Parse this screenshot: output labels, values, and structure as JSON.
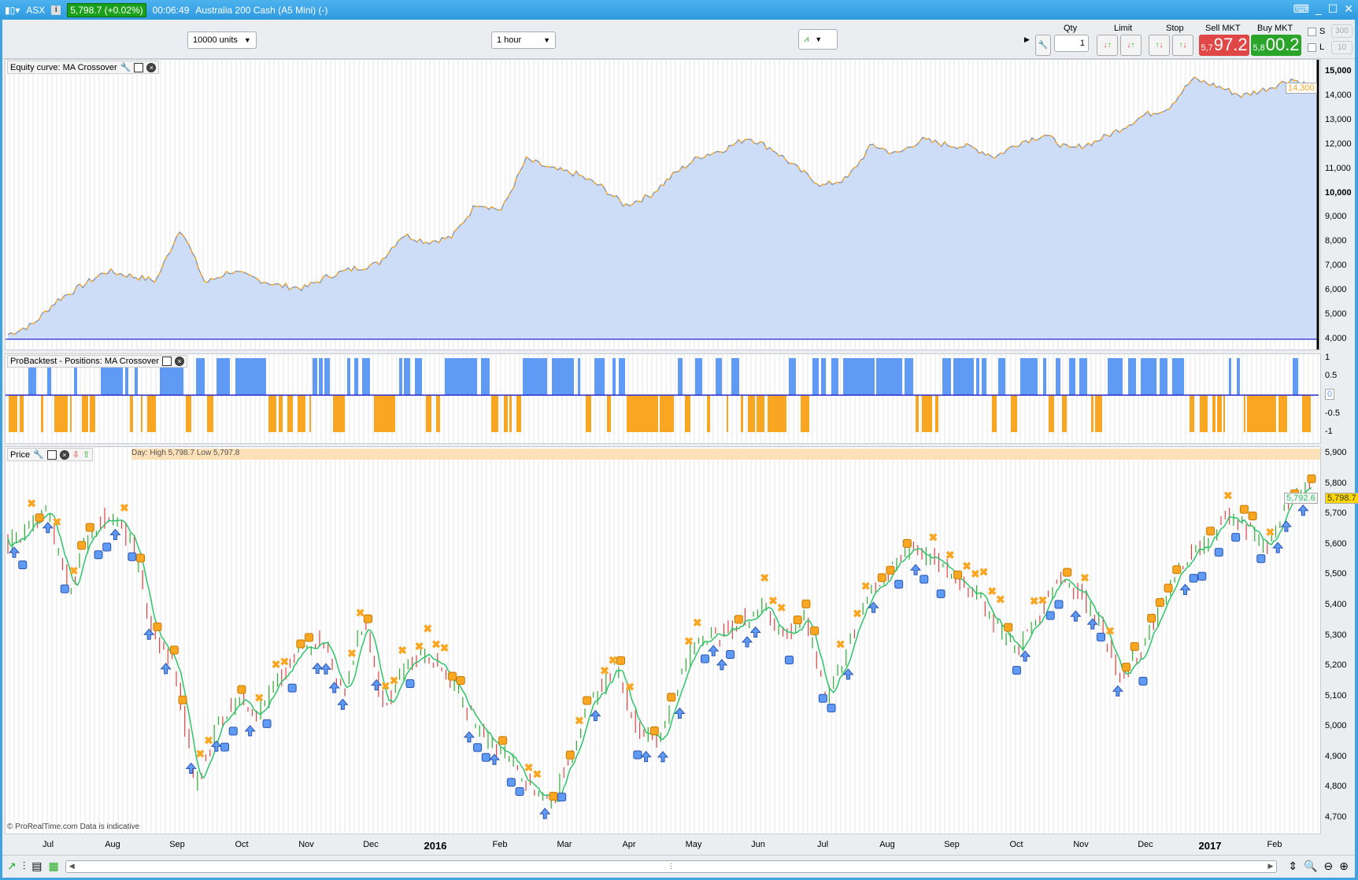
{
  "title_bar": {
    "symbol": "ASX",
    "last_price": "5,798.7 (+0.02%)",
    "time": "00:06:49",
    "instrument": "Australia 200 Cash (A5 Mini) (-)"
  },
  "toolbar": {
    "units": "10000 units",
    "timeframe": "1 hour",
    "qty_label": "Qty",
    "qty_value": "1",
    "limit_label": "Limit",
    "stop_label": "Stop",
    "sell_label": "Sell MKT",
    "sell_big": "97.2",
    "sell_small": "5,7",
    "buy_label": "Buy MKT",
    "buy_big": "00.2",
    "buy_small": "5,8",
    "s_label": "S",
    "s_value": "300",
    "l_label": "L",
    "l_value": "10"
  },
  "colors": {
    "equity_fill": "#cddcf7",
    "equity_line": "#6495ed",
    "equity_line2": "#f5a623",
    "long": "#5f9af5",
    "short": "#f9a623",
    "buy_green": "#2aa52a",
    "sell_red": "#e04848"
  },
  "panels": {
    "equity_title": "Equity curve: MA Crossover",
    "positions_title": "ProBacktest - Positions: MA Crossover",
    "price_title": "Price",
    "price_info": "Day: High 5,798.7  Low 5,797.8",
    "footer_note": "© ProRealTime.com Data is indicative"
  },
  "axes": {
    "equity_ticks": [
      "15,000",
      "14,000",
      "13,000",
      "12,000",
      "11,000",
      "10,000",
      "9,000",
      "8,000",
      "7,000",
      "6,000",
      "5,000",
      "4,000"
    ],
    "equity_current": "14,300",
    "positions_ticks": [
      "1",
      "0.5",
      "0",
      "-0.5",
      "-1"
    ],
    "price_ticks": [
      "5,900",
      "5,800",
      "5,700",
      "5,600",
      "5,500",
      "5,400",
      "5,300",
      "5,200",
      "5,100",
      "5,000",
      "4,900",
      "4,800",
      "4,700"
    ],
    "price_current": "5,798.7",
    "price_ma": "5,792.6",
    "months": [
      "Jul",
      "Aug",
      "Sep",
      "Oct",
      "Nov",
      "Dec",
      "2016",
      "Feb",
      "Mar",
      "Apr",
      "May",
      "Jun",
      "Jul",
      "Aug",
      "Sep",
      "Oct",
      "Nov",
      "Dec",
      "2017",
      "Feb"
    ]
  },
  "chart_data": [
    {
      "type": "area",
      "title": "Equity curve: MA Crossover",
      "ylim": [
        4000,
        15000
      ],
      "values": [
        4200,
        4600,
        5600,
        6200,
        6800,
        6600,
        6400,
        8600,
        6300,
        6800,
        6500,
        6200,
        6100,
        6600,
        6900,
        7100,
        8300,
        8000,
        8200,
        9600,
        9300,
        11400,
        11000,
        10800,
        10300,
        9500,
        9900,
        10800,
        11500,
        11800,
        12300,
        11800,
        11000,
        10300,
        10600,
        12000,
        11600,
        12200,
        12000,
        11900,
        11500,
        12100,
        12400,
        11800,
        12100,
        12600,
        13200,
        13500,
        14700,
        14400,
        14000,
        14300,
        14700,
        14300
      ]
    },
    {
      "type": "bar",
      "title": "ProBacktest - Positions: MA Crossover",
      "ylim": [
        -1,
        1
      ],
      "values": "+1 long / -1 short position per bar"
    },
    {
      "type": "line",
      "title": "Price",
      "ylim": [
        4700,
        5900
      ],
      "values": [
        5600,
        5650,
        5700,
        5450,
        5650,
        5700,
        5600,
        5300,
        5200,
        4800,
        5000,
        5100,
        5050,
        5150,
        5250,
        5300,
        5100,
        5350,
        5050,
        5200,
        5250,
        5150,
        5050,
        4950,
        4900,
        4800,
        4750,
        4950,
        5100,
        5200,
        5000,
        4950,
        5150,
        5300,
        5300,
        5350,
        5400,
        5300,
        5350,
        5100,
        5250,
        5450,
        5500,
        5600,
        5550,
        5500,
        5450,
        5350,
        5250,
        5350,
        5500,
        5450,
        5350,
        5150,
        5250,
        5400,
        5550,
        5600,
        5700,
        5650,
        5600,
        5750,
        5790
      ]
    }
  ]
}
